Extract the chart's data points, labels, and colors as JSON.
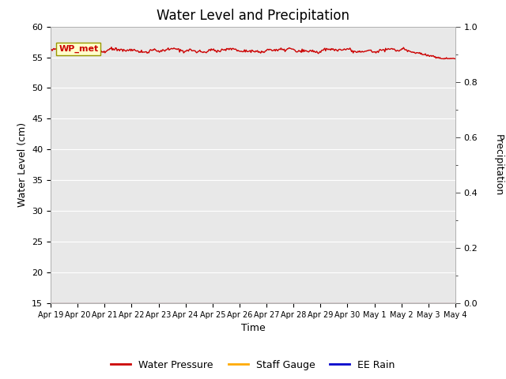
{
  "title": "Water Level and Precipitation",
  "xlabel": "Time",
  "ylabel_left": "Water Level (cm)",
  "ylabel_right": "Precipitation",
  "ylim_left": [
    15,
    60
  ],
  "ylim_right": [
    0.0,
    1.0
  ],
  "yticks_left": [
    15,
    20,
    25,
    30,
    35,
    40,
    45,
    50,
    55,
    60
  ],
  "yticks_right": [
    0.0,
    0.2,
    0.4,
    0.6,
    0.8,
    1.0
  ],
  "xtick_labels": [
    "Apr 19",
    "Apr 20",
    "Apr 21",
    "Apr 22",
    "Apr 23",
    "Apr 24",
    "Apr 25",
    "Apr 26",
    "Apr 27",
    "Apr 28",
    "Apr 29",
    "Apr 30",
    "May 1",
    "May 2",
    "May 3",
    "May 4"
  ],
  "water_pressure_color": "#cc0000",
  "staff_gauge_color": "#ffaa00",
  "ee_rain_color": "#0000cc",
  "annotation_text": "WP_met",
  "annotation_color": "#cc0000",
  "annotation_bg": "#ffffcc",
  "annotation_edge": "#999900",
  "background_color": "#e8e8e8",
  "grid_color": "#ffffff",
  "title_fontsize": 12,
  "axis_label_fontsize": 9,
  "tick_fontsize": 8,
  "legend_fontsize": 9
}
